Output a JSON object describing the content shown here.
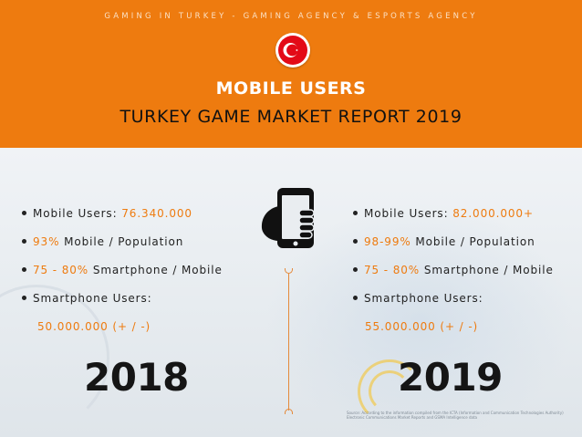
{
  "header": {
    "tagline": "GAMING IN TURKEY - GAMING AGENCY & ESPORTS AGENCY",
    "title": "MOBILE USERS",
    "subtitle": "TURKEY GAME MARKET REPORT 2019",
    "flag_icon": "turkey-flag-icon",
    "colors": {
      "accent": "#ee7b0f",
      "flag_red": "#e30a17"
    }
  },
  "center_icon": "hand-holding-smartphone-icon",
  "left": {
    "year": "2018",
    "items": [
      {
        "label": "Mobile Users: ",
        "value": "76.340.000",
        "suffix": ""
      },
      {
        "label": "",
        "value": "93%",
        "suffix": " Mobile / Population"
      },
      {
        "label": "",
        "value": "75 - 80%",
        "suffix": " Smartphone / Mobile"
      },
      {
        "label": "Smartphone Users:",
        "value": "",
        "suffix": ""
      }
    ],
    "smartphone_users": "50.000.000 (+ / -)"
  },
  "right": {
    "year": "2019",
    "items": [
      {
        "label": "Mobile Users: ",
        "value": "82.000.000+",
        "suffix": ""
      },
      {
        "label": "",
        "value": "98-99%",
        "suffix": " Mobile / Population"
      },
      {
        "label": "",
        "value": "75 - 80%",
        "suffix": " Smartphone / Mobile"
      },
      {
        "label": "Smartphone Users:",
        "value": "",
        "suffix": ""
      }
    ],
    "smartphone_users": "55.000.000 (+ / -)"
  },
  "source": "Source: According to the information compiled from the ICTA (Information and Communication Technologies Authority) Electronic Communications Market Reports and GSMA Intelligence data"
}
